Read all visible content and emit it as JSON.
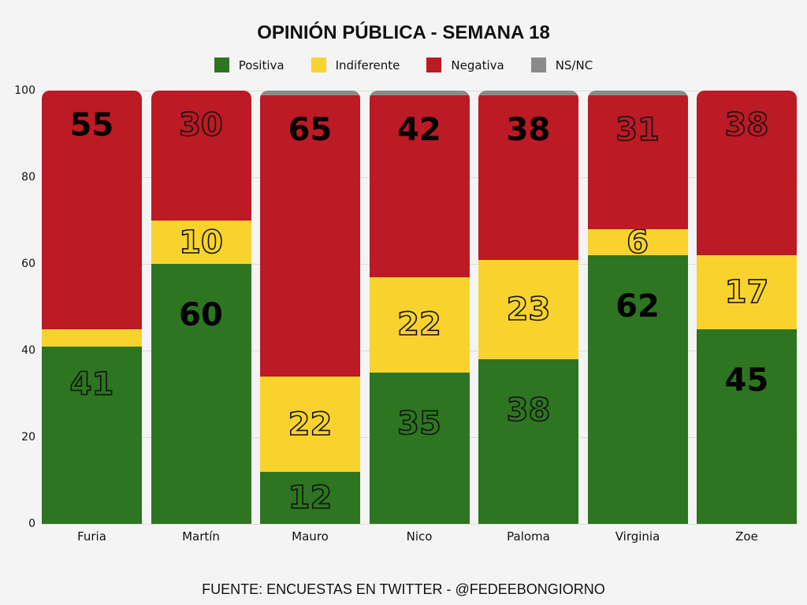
{
  "chart_data": {
    "type": "bar",
    "stacked": true,
    "title": "OPINIÓN PÚBLICA - SEMANA 18",
    "xlabel": "",
    "ylabel": "",
    "ylim": [
      0,
      100
    ],
    "yticks": [
      0,
      20,
      40,
      60,
      80,
      100
    ],
    "grid": true,
    "legend_position": "top",
    "categories": [
      "Furia",
      "Martín",
      "Mauro",
      "Nico",
      "Paloma",
      "Virginia",
      "Zoe"
    ],
    "series": [
      {
        "name": "Positiva",
        "color": "#2d7520",
        "values": [
          41,
          60,
          12,
          35,
          38,
          62,
          45
        ]
      },
      {
        "name": "Indiferente",
        "color": "#f8d32e",
        "values": [
          4,
          10,
          22,
          22,
          23,
          6,
          17
        ]
      },
      {
        "name": "Negativa",
        "color": "#bc1a24",
        "values": [
          55,
          30,
          65,
          42,
          38,
          31,
          38
        ]
      },
      {
        "name": "NS/NC",
        "color": "#8a8a8a",
        "values": [
          0,
          0,
          1,
          1,
          1,
          1,
          0
        ]
      }
    ],
    "data_labels": [
      {
        "Positiva": "41",
        "Indiferente": "",
        "Negativa": "55"
      },
      {
        "Positiva": "60",
        "Indiferente": "10",
        "Negativa": "30"
      },
      {
        "Positiva": "12",
        "Indiferente": "22",
        "Negativa": "65"
      },
      {
        "Positiva": "35",
        "Indiferente": "22",
        "Negativa": "42"
      },
      {
        "Positiva": "38",
        "Indiferente": "23",
        "Negativa": "38"
      },
      {
        "Positiva": "62",
        "Indiferente": "6",
        "Negativa": "31"
      },
      {
        "Positiva": "45",
        "Indiferente": "17",
        "Negativa": "38"
      }
    ],
    "source": "FUENTE: ENCUESTAS EN TWITTER - @FEDEEBONGIORNO"
  },
  "header": {
    "title": "OPINIÓN PÚBLICA - SEMANA 18"
  },
  "legend": [
    {
      "label": "Positiva",
      "color": "#2d7520"
    },
    {
      "label": "Indiferente",
      "color": "#f8d32e"
    },
    {
      "label": "Negativa",
      "color": "#bc1a24"
    },
    {
      "label": "NS/NC",
      "color": "#8a8a8a"
    }
  ],
  "footer": {
    "source": "FUENTE: ENCUESTAS EN TWITTER - @FEDEEBONGIORNO"
  }
}
